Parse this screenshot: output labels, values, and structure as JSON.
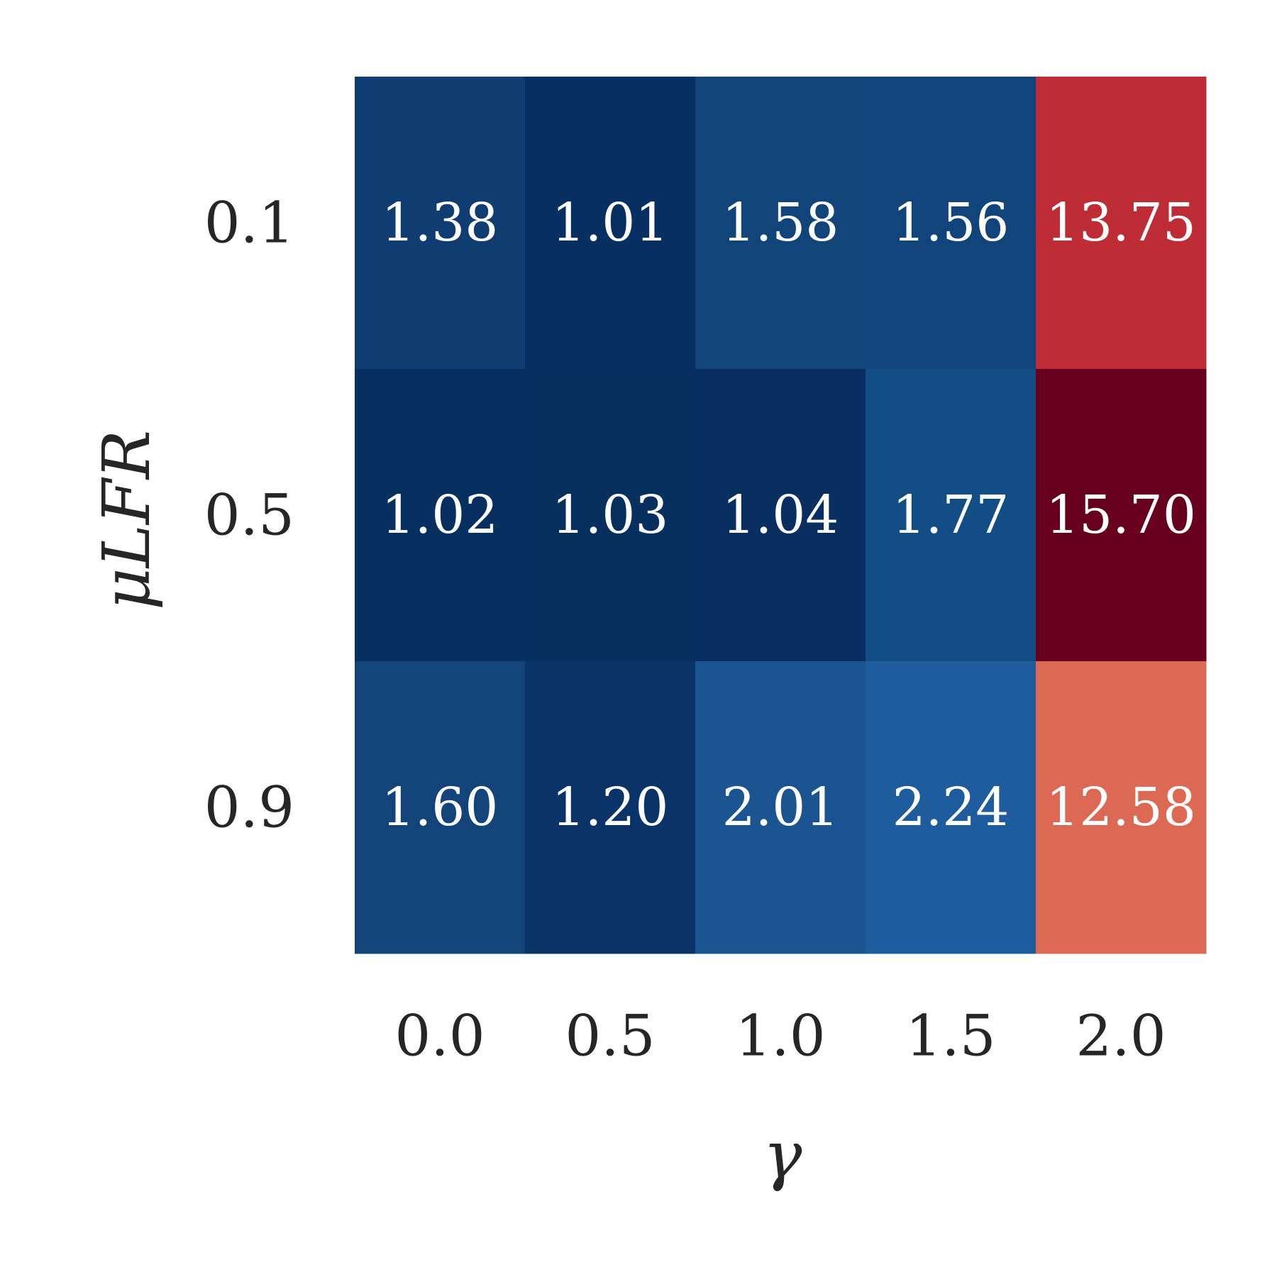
{
  "chart_data": {
    "type": "heatmap",
    "title": "",
    "xlabel": "γ",
    "ylabel": "μLFR",
    "x_categories": [
      "0.0",
      "0.5",
      "1.0",
      "1.5",
      "2.0"
    ],
    "y_categories": [
      "0.1",
      "0.5",
      "0.9"
    ],
    "values": [
      [
        1.38,
        1.01,
        1.58,
        1.56,
        13.75
      ],
      [
        1.02,
        1.03,
        1.04,
        1.77,
        15.7
      ],
      [
        1.6,
        1.2,
        2.01,
        2.24,
        12.58
      ]
    ],
    "value_labels": [
      [
        "1.38",
        "1.01",
        "1.58",
        "1.56",
        "13.75"
      ],
      [
        "1.02",
        "1.03",
        "1.04",
        "1.77",
        "15.70"
      ],
      [
        "1.60",
        "1.20",
        "2.01",
        "2.24",
        "12.58"
      ]
    ],
    "colormap": "RdBu_r",
    "cell_colors": [
      [
        "#0f3d72",
        "#082f61",
        "#114479",
        "#11447a",
        "#be2c36"
      ],
      [
        "#072f60",
        "#07305f",
        "#082f60",
        "#134d86",
        "#67001f"
      ],
      [
        "#124479",
        "#0a3468",
        "#1a5491",
        "#1e5c9d",
        "#dc6954"
      ]
    ],
    "grid": false,
    "colorbar": false
  }
}
